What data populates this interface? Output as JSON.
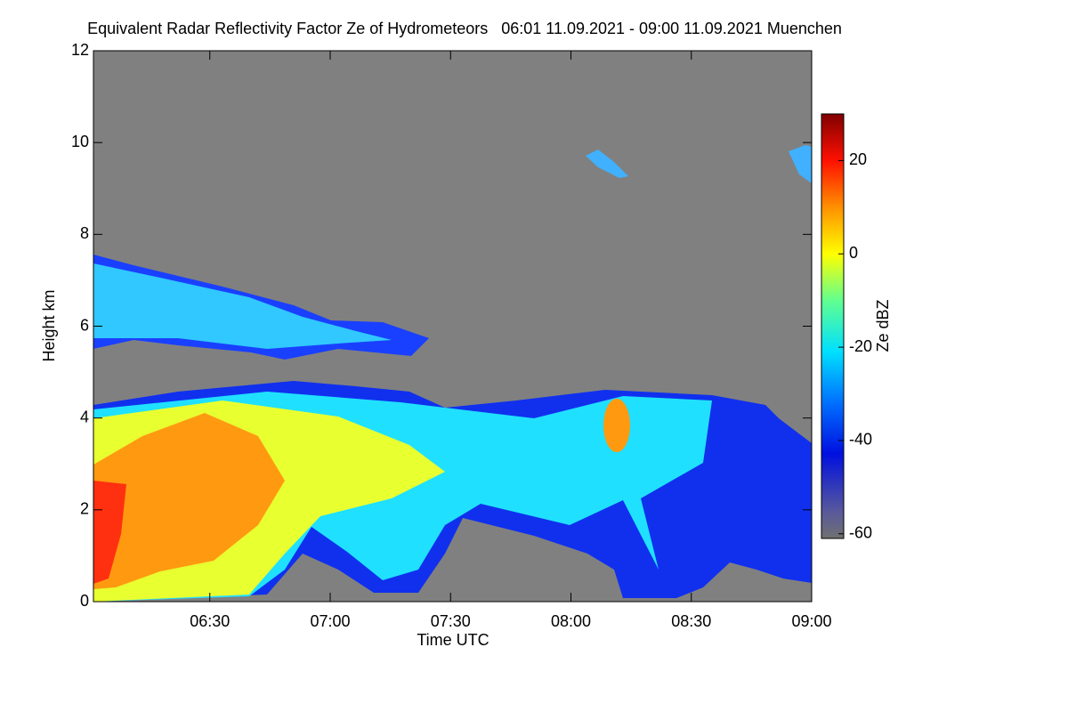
{
  "chart_data": {
    "type": "heatmap",
    "title": "Equivalent Radar Reflectivity Factor Ze of Hydrometeors   06:01 11.09.2021 - 09:00 11.09.2021 Muenchen",
    "xlabel": "Time UTC",
    "ylabel": "Height km",
    "xlim": [
      361,
      540
    ],
    "xticks": [
      {
        "value": 390,
        "label": "06:30"
      },
      {
        "value": 420,
        "label": "07:00"
      },
      {
        "value": 450,
        "label": "07:30"
      },
      {
        "value": 480,
        "label": "08:00"
      },
      {
        "value": 510,
        "label": "08:30"
      },
      {
        "value": 540,
        "label": "09:00"
      }
    ],
    "ylim": [
      0,
      12
    ],
    "yticks": [
      0,
      2,
      4,
      6,
      8,
      10,
      12
    ],
    "colorbar": {
      "label": "Ze dBZ",
      "lim": [
        -61,
        30
      ],
      "ticks": [
        -60,
        -40,
        -20,
        0,
        20
      ]
    }
  }
}
